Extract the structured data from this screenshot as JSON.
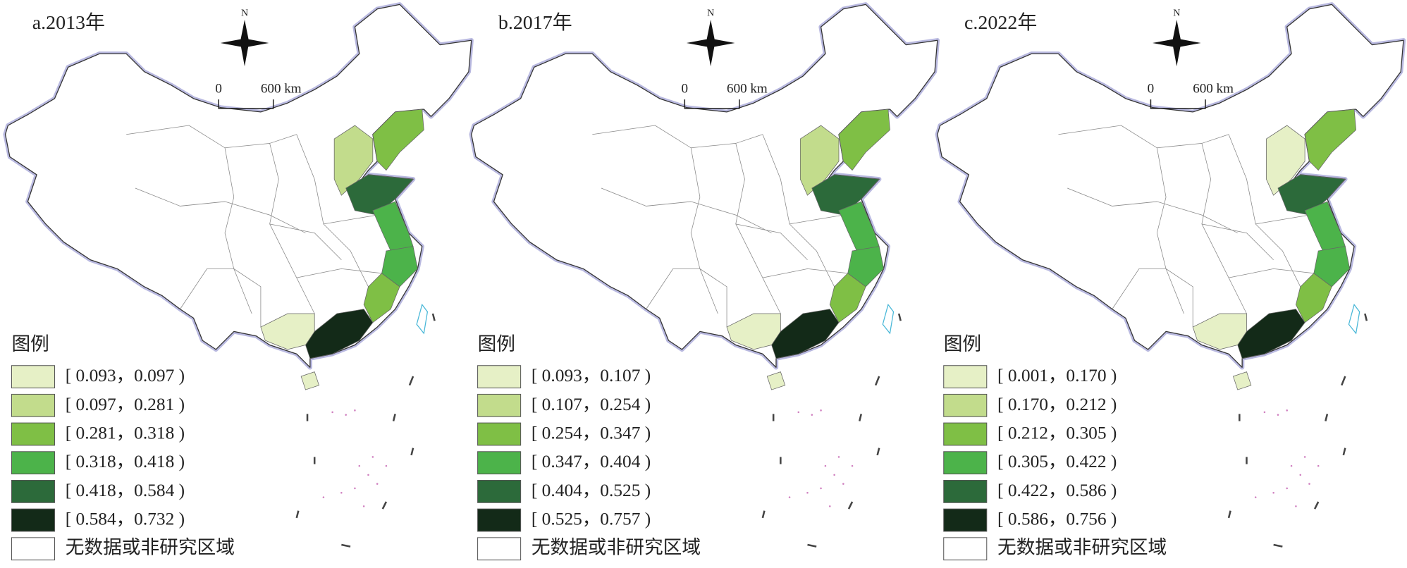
{
  "panels": [
    {
      "title": "a.2013年",
      "north": "N",
      "scale": {
        "zero": "0",
        "distance": "600 km"
      },
      "legend": {
        "title": "图例",
        "items": [
          {
            "label": "[ 0.093，0.097 )",
            "color": "#e6f0c6"
          },
          {
            "label": "[ 0.097，0.281 )",
            "color": "#c2dc8c"
          },
          {
            "label": "[ 0.281，0.318 )",
            "color": "#7fbf45"
          },
          {
            "label": "[ 0.318，0.418 )",
            "color": "#4cb34a"
          },
          {
            "label": "[ 0.418，0.584 )",
            "color": "#2c6a3a"
          },
          {
            "label": "[ 0.584，0.732 )",
            "color": "#132a18"
          }
        ],
        "none": {
          "label": "无数据或非研究区域",
          "color": "#ffffff"
        }
      }
    },
    {
      "title": "b.2017年",
      "north": "N",
      "scale": {
        "zero": "0",
        "distance": "600 km"
      },
      "legend": {
        "title": "图例",
        "items": [
          {
            "label": "[ 0.093，0.107 )",
            "color": "#e6f0c6"
          },
          {
            "label": "[ 0.107，0.254 )",
            "color": "#c2dc8c"
          },
          {
            "label": "[ 0.254，0.347 )",
            "color": "#7fbf45"
          },
          {
            "label": "[ 0.347，0.404 )",
            "color": "#4cb34a"
          },
          {
            "label": "[ 0.404，0.525 )",
            "color": "#2c6a3a"
          },
          {
            "label": "[ 0.525，0.757 )",
            "color": "#132a18"
          }
        ],
        "none": {
          "label": "无数据或非研究区域",
          "color": "#ffffff"
        }
      }
    },
    {
      "title": "c.2022年",
      "north": "N",
      "scale": {
        "zero": "0",
        "distance": "600 km"
      },
      "legend": {
        "title": "图例",
        "items": [
          {
            "label": "[ 0.001，0.170 )",
            "color": "#e6f0c6"
          },
          {
            "label": "[ 0.170，0.212 )",
            "color": "#c2dc8c"
          },
          {
            "label": "[ 0.212，0.305 )",
            "color": "#7fbf45"
          },
          {
            "label": "[ 0.305，0.422 )",
            "color": "#4cb34a"
          },
          {
            "label": "[ 0.422，0.586 )",
            "color": "#2c6a3a"
          },
          {
            "label": "[ 0.586，0.756 )",
            "color": "#132a18"
          }
        ],
        "none": {
          "label": "无数据或非研究区域",
          "color": "#ffffff"
        }
      }
    }
  ]
}
